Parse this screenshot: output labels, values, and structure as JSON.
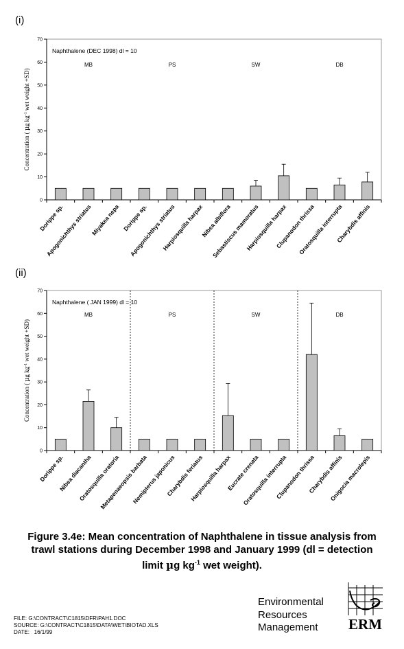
{
  "panels": {
    "p1_label": "(i)",
    "p2_label": "(ii)"
  },
  "ylabel_parts": [
    "Concentration ( ",
    "µ",
    "g kg",
    "-1",
    " wet weight +SD)"
  ],
  "chart_data": [
    {
      "type": "bar",
      "panel": "(i)",
      "annotation": "Naphthalene (DEC 1998) dl = 10",
      "ylim": [
        0,
        70
      ],
      "yticks": [
        0,
        10,
        20,
        30,
        40,
        50,
        60,
        70
      ],
      "categories": [
        "Dorippe sp.",
        "Apogonichthys striatus",
        "Miyakea nepa",
        "Dorippe sp.",
        "Apogonichthys striatus",
        "Harpiosquilla harpax",
        "Nibea albiflora",
        "Sebastiscus mamoratus",
        "Harpiosquilla harpax",
        "Clupanodon thrissa",
        "Oratosquilla interrupta",
        "Charybdis affinis"
      ],
      "values": [
        5,
        5,
        5,
        5,
        5,
        5,
        5,
        6,
        10.5,
        5,
        6.5,
        7.8
      ],
      "sd": [
        0,
        0,
        0,
        0,
        0,
        0,
        0,
        2.5,
        5,
        0,
        3,
        4.2
      ],
      "groups": [
        {
          "label": "MB",
          "start": 0,
          "end": 2
        },
        {
          "label": "PS",
          "start": 3,
          "end": 5
        },
        {
          "label": "SW",
          "start": 6,
          "end": 8
        },
        {
          "label": "DB",
          "start": 9,
          "end": 11
        }
      ],
      "dividers": false,
      "bar_color": "#c0c0c0"
    },
    {
      "type": "bar",
      "panel": "(ii)",
      "annotation": "Naphthalene ( JAN 1999) dl = 10",
      "ylim": [
        0,
        70
      ],
      "yticks": [
        0,
        10,
        20,
        30,
        40,
        50,
        60,
        70
      ],
      "categories": [
        "Dorippe sp.",
        "Nibea diacantha",
        "Oratosquilla oratoria",
        "Metapenaeopsis barbata",
        "Nemipterus japonicus",
        "Charybdis feriatus",
        "Harpiosquilla harpax",
        "Eucrate crenata",
        "Oratosquilla interrupta",
        "Clupanodon thrissa",
        "Charybdis affinis",
        "Onigocia macrolepis"
      ],
      "values": [
        5,
        21.5,
        10,
        5,
        5,
        5,
        15.3,
        5,
        5,
        42,
        6.5,
        5
      ],
      "sd": [
        0,
        5,
        4.5,
        0,
        0,
        0,
        14,
        0,
        0,
        22.5,
        3,
        0
      ],
      "groups": [
        {
          "label": "MB",
          "start": 0,
          "end": 2
        },
        {
          "label": "PS",
          "start": 3,
          "end": 5
        },
        {
          "label": "SW",
          "start": 6,
          "end": 8
        },
        {
          "label": "DB",
          "start": 9,
          "end": 11
        }
      ],
      "dividers": true,
      "bar_color": "#c0c0c0"
    }
  ],
  "caption": {
    "line1": "Figure 3.4e:    Mean concentration of Naphthalene in tissue analysis from",
    "line2": "trawl stations during December 1998 and January 1999 (dl = detection",
    "line3_pre": "limit ",
    "line3_mu": "µ",
    "line3_mid": "g kg",
    "line3_sup": "-1",
    "line3_post": " wet weight)."
  },
  "footer": {
    "file": "FILE: G:\\CONTRACT\\C1815\\DFR\\PAH1.DOC",
    "source": "SOURCE: G:\\CONTRACT\\C1815\\DATA\\WET\\BIOTAD.XLS",
    "date": "DATE:   16/1/99"
  },
  "org": {
    "line1": "Environmental",
    "line2": "Resources",
    "line3": "Management",
    "logo_text": "ERM"
  }
}
